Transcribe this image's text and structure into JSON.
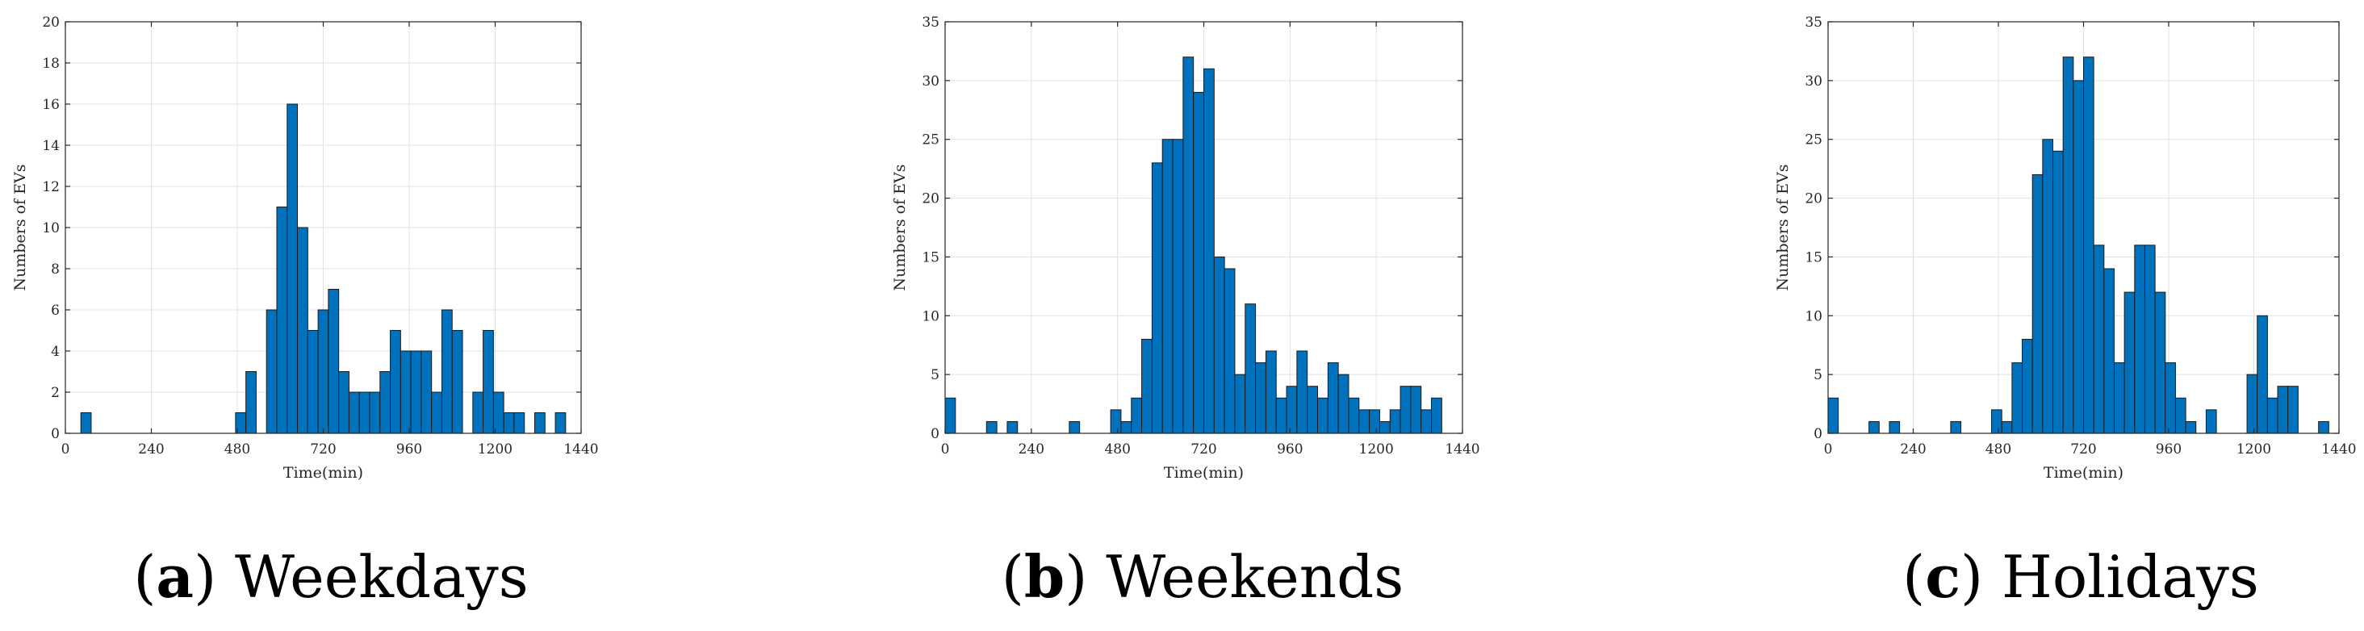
{
  "chart_data": [
    {
      "type": "bar",
      "caption_letter": "a",
      "caption_text": "Weekdays",
      "xlabel": "Time(min)",
      "ylabel": "Numbers of EVs",
      "xlim": [
        0,
        1440
      ],
      "ylim": [
        0,
        20
      ],
      "xticks": [
        0,
        240,
        480,
        720,
        960,
        1200,
        1440
      ],
      "yticks": [
        0,
        2,
        4,
        6,
        8,
        10,
        12,
        14,
        16,
        18,
        20
      ],
      "grid": true,
      "bin_width": 28.8,
      "bar_color": "#0072bd",
      "bins": [
        {
          "x": 43.2,
          "value": 1
        },
        {
          "x": 475.2,
          "value": 1
        },
        {
          "x": 504,
          "value": 3
        },
        {
          "x": 561.6,
          "value": 6
        },
        {
          "x": 590.4,
          "value": 11
        },
        {
          "x": 619.2,
          "value": 16
        },
        {
          "x": 648,
          "value": 10
        },
        {
          "x": 676.8,
          "value": 5
        },
        {
          "x": 705.6,
          "value": 6
        },
        {
          "x": 734.4,
          "value": 7
        },
        {
          "x": 763.2,
          "value": 3
        },
        {
          "x": 792,
          "value": 2
        },
        {
          "x": 820.8,
          "value": 2
        },
        {
          "x": 849.6,
          "value": 2
        },
        {
          "x": 878.4,
          "value": 3
        },
        {
          "x": 907.2,
          "value": 5
        },
        {
          "x": 936,
          "value": 4
        },
        {
          "x": 964.8,
          "value": 4
        },
        {
          "x": 993.6,
          "value": 4
        },
        {
          "x": 1022.4,
          "value": 2
        },
        {
          "x": 1051.2,
          "value": 6
        },
        {
          "x": 1080,
          "value": 5
        },
        {
          "x": 1137.6,
          "value": 2
        },
        {
          "x": 1166.4,
          "value": 5
        },
        {
          "x": 1195.2,
          "value": 2
        },
        {
          "x": 1224,
          "value": 1
        },
        {
          "x": 1252.8,
          "value": 1
        },
        {
          "x": 1310.4,
          "value": 1
        },
        {
          "x": 1368,
          "value": 1
        }
      ]
    },
    {
      "type": "bar",
      "caption_letter": "b",
      "caption_text": "Weekends",
      "xlabel": "Time(min)",
      "ylabel": "Numbers of EVs",
      "xlim": [
        0,
        1440
      ],
      "ylim": [
        0,
        35
      ],
      "xticks": [
        0,
        240,
        480,
        720,
        960,
        1200,
        1440
      ],
      "yticks": [
        0,
        5,
        10,
        15,
        20,
        25,
        30,
        35
      ],
      "grid": true,
      "bin_width": 28.8,
      "bar_color": "#0072bd",
      "bins": [
        {
          "x": 0,
          "value": 3
        },
        {
          "x": 115.2,
          "value": 1
        },
        {
          "x": 172.8,
          "value": 1
        },
        {
          "x": 345.6,
          "value": 1
        },
        {
          "x": 460.8,
          "value": 2
        },
        {
          "x": 489.6,
          "value": 1
        },
        {
          "x": 518.4,
          "value": 3
        },
        {
          "x": 547.2,
          "value": 8
        },
        {
          "x": 576,
          "value": 23
        },
        {
          "x": 604.8,
          "value": 25
        },
        {
          "x": 633.6,
          "value": 25
        },
        {
          "x": 662.4,
          "value": 32
        },
        {
          "x": 691.2,
          "value": 29
        },
        {
          "x": 720,
          "value": 31
        },
        {
          "x": 748.8,
          "value": 15
        },
        {
          "x": 777.6,
          "value": 14
        },
        {
          "x": 806.4,
          "value": 5
        },
        {
          "x": 835.2,
          "value": 11
        },
        {
          "x": 864,
          "value": 6
        },
        {
          "x": 892.8,
          "value": 7
        },
        {
          "x": 921.6,
          "value": 3
        },
        {
          "x": 950.4,
          "value": 4
        },
        {
          "x": 979.2,
          "value": 7
        },
        {
          "x": 1008,
          "value": 4
        },
        {
          "x": 1036.8,
          "value": 3
        },
        {
          "x": 1065.6,
          "value": 6
        },
        {
          "x": 1094.4,
          "value": 5
        },
        {
          "x": 1123.2,
          "value": 3
        },
        {
          "x": 1152,
          "value": 2
        },
        {
          "x": 1180.8,
          "value": 2
        },
        {
          "x": 1209.6,
          "value": 1
        },
        {
          "x": 1238.4,
          "value": 2
        },
        {
          "x": 1267.2,
          "value": 4
        },
        {
          "x": 1296,
          "value": 4
        },
        {
          "x": 1324.8,
          "value": 2
        },
        {
          "x": 1353.6,
          "value": 3
        }
      ]
    },
    {
      "type": "bar",
      "caption_letter": "c",
      "caption_text": "Holidays",
      "xlabel": "Time(min)",
      "ylabel": "Numbers of EVs",
      "xlim": [
        0,
        1440
      ],
      "ylim": [
        0,
        35
      ],
      "xticks": [
        0,
        240,
        480,
        720,
        960,
        1200,
        1440
      ],
      "yticks": [
        0,
        5,
        10,
        15,
        20,
        25,
        30,
        35
      ],
      "grid": true,
      "bin_width": 28.8,
      "bar_color": "#0072bd",
      "bins": [
        {
          "x": 0,
          "value": 3
        },
        {
          "x": 115.2,
          "value": 1
        },
        {
          "x": 172.8,
          "value": 1
        },
        {
          "x": 345.6,
          "value": 1
        },
        {
          "x": 460.8,
          "value": 2
        },
        {
          "x": 489.6,
          "value": 1
        },
        {
          "x": 518.4,
          "value": 6
        },
        {
          "x": 547.2,
          "value": 8
        },
        {
          "x": 576,
          "value": 22
        },
        {
          "x": 604.8,
          "value": 25
        },
        {
          "x": 633.6,
          "value": 24
        },
        {
          "x": 662.4,
          "value": 32
        },
        {
          "x": 691.2,
          "value": 30
        },
        {
          "x": 720,
          "value": 32
        },
        {
          "x": 748.8,
          "value": 16
        },
        {
          "x": 777.6,
          "value": 14
        },
        {
          "x": 806.4,
          "value": 6
        },
        {
          "x": 835.2,
          "value": 12
        },
        {
          "x": 864,
          "value": 16
        },
        {
          "x": 892.8,
          "value": 16
        },
        {
          "x": 921.6,
          "value": 12
        },
        {
          "x": 950.4,
          "value": 6
        },
        {
          "x": 979.2,
          "value": 3
        },
        {
          "x": 1008,
          "value": 1
        },
        {
          "x": 1065.6,
          "value": 2
        },
        {
          "x": 1180.8,
          "value": 5
        },
        {
          "x": 1209.6,
          "value": 10
        },
        {
          "x": 1238.4,
          "value": 3
        },
        {
          "x": 1267.2,
          "value": 4
        },
        {
          "x": 1296,
          "value": 4
        },
        {
          "x": 1382.4,
          "value": 1
        }
      ]
    }
  ]
}
